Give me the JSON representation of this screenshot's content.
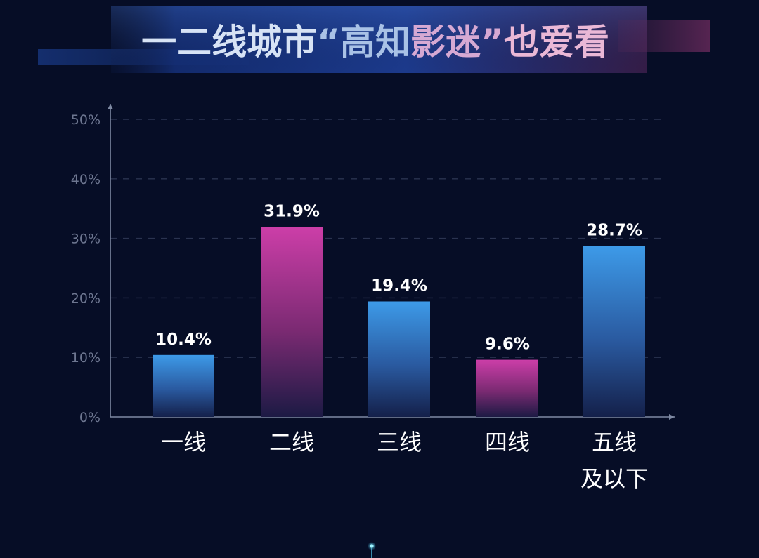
{
  "chart_data": {
    "type": "bar",
    "title": "一二线城市“高知影迷”也爱看",
    "title_parts": [
      {
        "text": "一二线城市",
        "color": "#d7e3f5"
      },
      {
        "text": "“高知",
        "color": "#a9c2e6"
      },
      {
        "text": "影迷”",
        "color": "#d6a9d3"
      },
      {
        "text": "也爱看",
        "color": "#eab8d6"
      }
    ],
    "categories": [
      "一线",
      "二线",
      "三线",
      "四线",
      "五线及以下"
    ],
    "category_lines": [
      [
        "一线"
      ],
      [
        "二线"
      ],
      [
        "三线"
      ],
      [
        "四线"
      ],
      [
        "五线",
        "及以下"
      ]
    ],
    "values": [
      10.4,
      31.9,
      19.4,
      9.6,
      28.7
    ],
    "value_labels": [
      "10.4%",
      "31.9%",
      "19.4%",
      "9.6%",
      "28.7%"
    ],
    "bar_colors": [
      "#3b95e6",
      "#c63ea6",
      "#3b95e6",
      "#c63ea6",
      "#3b95e6"
    ],
    "ylim": [
      0,
      50
    ],
    "yticks": [
      "0%",
      "10%",
      "20%",
      "30%",
      "40%",
      "50%"
    ],
    "grid": true,
    "xlabel": "",
    "ylabel": ""
  },
  "colors": {
    "background": "#060d26",
    "grid": "#2a3350",
    "axis": "#7f8aa3",
    "tick_text": "#6d7690",
    "label_text": "#ffffff"
  }
}
